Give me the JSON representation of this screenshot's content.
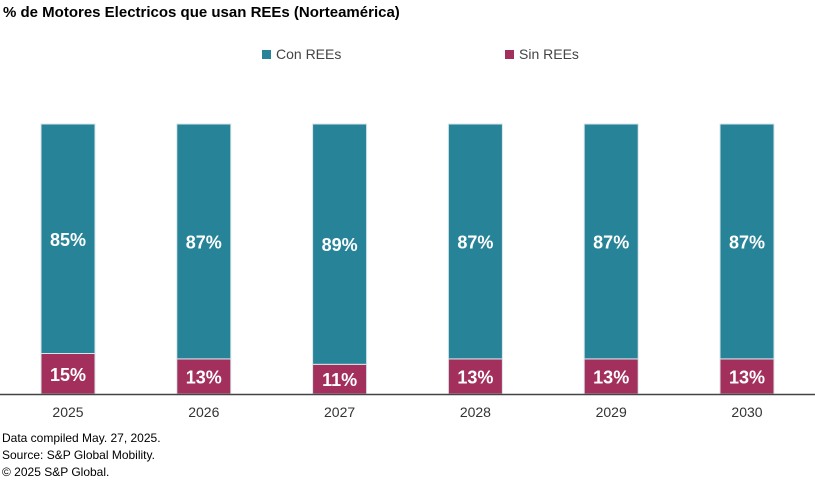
{
  "chart_data": {
    "type": "bar",
    "stacked": true,
    "title": "% de Motores Electricos que usan REEs (Norteamérica)",
    "categories": [
      "2025",
      "2026",
      "2027",
      "2028",
      "2029",
      "2030"
    ],
    "series": [
      {
        "name": "Sin REEs",
        "color": "#A3305C",
        "values": [
          15,
          13,
          11,
          13,
          13,
          13
        ],
        "labels": [
          "15%",
          "13%",
          "11%",
          "13%",
          "13%",
          "13%"
        ]
      },
      {
        "name": "Con REEs",
        "color": "#278398",
        "values": [
          85,
          87,
          89,
          87,
          87,
          87
        ],
        "labels": [
          "85%",
          "87%",
          "89%",
          "87%",
          "87%",
          "87%"
        ]
      }
    ],
    "legend_position": "top",
    "grid": false,
    "ylim": [
      0,
      100
    ]
  },
  "footer": {
    "line1": "Data compiled May. 27, 2025.",
    "line2": "Source: S&P Global Mobility.",
    "line3": "© 2025 S&P Global."
  }
}
